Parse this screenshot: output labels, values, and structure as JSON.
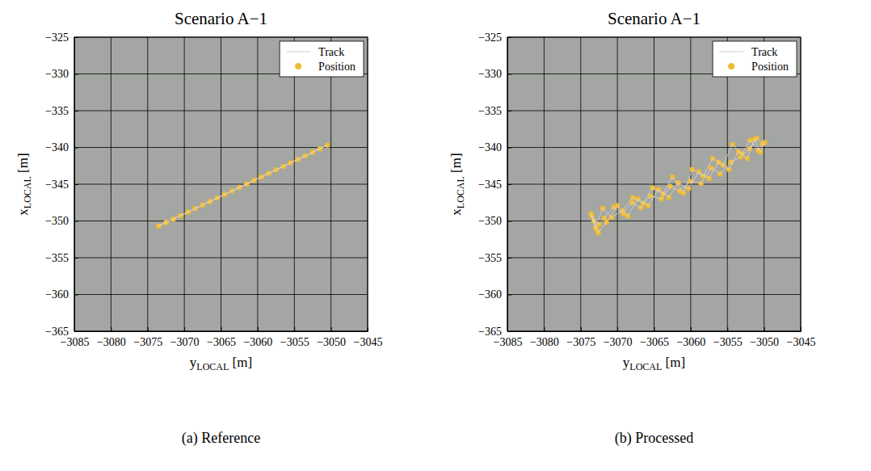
{
  "chart_data": [
    {
      "type": "scatter",
      "title": "Scenario A−1",
      "caption": "(a) Reference",
      "x_label": {
        "base": "y",
        "sub": "LOCAL",
        "unit": " [m]"
      },
      "y_label": {
        "base": "x",
        "sub": "LOCAL",
        "unit": " [m]"
      },
      "xlim": [
        -3085,
        -3045
      ],
      "ylim": [
        -365,
        -325
      ],
      "xticks": [
        {
          "value": -3085,
          "label": "−3085"
        },
        {
          "value": -3080,
          "label": "−3080"
        },
        {
          "value": -3075,
          "label": "−3075"
        },
        {
          "value": -3070,
          "label": "−3070"
        },
        {
          "value": -3065,
          "label": "−3065"
        },
        {
          "value": -3060,
          "label": "−3060"
        },
        {
          "value": -3055,
          "label": "−3055"
        },
        {
          "value": -3050,
          "label": "−3050"
        },
        {
          "value": -3045,
          "label": "−3045"
        }
      ],
      "yticks": [
        {
          "value": -365,
          "label": "−365"
        },
        {
          "value": -360,
          "label": "−360"
        },
        {
          "value": -355,
          "label": "−355"
        },
        {
          "value": -350,
          "label": "−350"
        },
        {
          "value": -345,
          "label": "−345"
        },
        {
          "value": -340,
          "label": "−340"
        },
        {
          "value": -335,
          "label": "−335"
        },
        {
          "value": -330,
          "label": "−330"
        },
        {
          "value": -325,
          "label": "−325"
        }
      ],
      "grid": true,
      "legend": "northeast",
      "series": [
        {
          "name": "Track",
          "type": "line",
          "color": "#d8d8d8",
          "line_style": "solid",
          "x": [
            -3073.5,
            -3072.5,
            -3071.5,
            -3070.5,
            -3069.5,
            -3068.5,
            -3067.5,
            -3066.5,
            -3065.5,
            -3064.5,
            -3063.5,
            -3062.5,
            -3061.5,
            -3060.5,
            -3059.5,
            -3058.5,
            -3057.5,
            -3056.5,
            -3055.5,
            -3054.5,
            -3053.5,
            -3052.5,
            -3051.5,
            -3050.5,
            -3051.5,
            -3052.5,
            -3053.5,
            -3054.5,
            -3055.5,
            -3056.5,
            -3057.5,
            -3058.5,
            -3059.5,
            -3060.5,
            -3061.5,
            -3062.5,
            -3063.5,
            -3064.5,
            -3065.5,
            -3066.5,
            -3067.5,
            -3068.5,
            -3069.5,
            -3070.5,
            -3071.5,
            -3072.5,
            -3073.5
          ],
          "values": [
            -350.7,
            -350.22,
            -349.74,
            -349.27,
            -348.79,
            -348.31,
            -347.83,
            -347.35,
            -346.88,
            -346.4,
            -345.92,
            -345.44,
            -344.96,
            -344.48,
            -344.01,
            -343.53,
            -343.05,
            -342.57,
            -342.09,
            -341.62,
            -341.14,
            -340.66,
            -340.18,
            -339.7,
            -340.18,
            -340.66,
            -341.14,
            -341.62,
            -342.09,
            -342.57,
            -343.05,
            -343.53,
            -344.01,
            -344.48,
            -344.96,
            -345.44,
            -345.92,
            -346.4,
            -346.88,
            -347.35,
            -347.83,
            -348.31,
            -348.79,
            -349.27,
            -349.74,
            -350.22,
            -350.7
          ]
        },
        {
          "name": "Position",
          "type": "scatter",
          "color": "#f2bb2e",
          "marker": "circle",
          "x": [
            -3073.5,
            -3072.5,
            -3071.5,
            -3070.5,
            -3069.5,
            -3068.5,
            -3067.5,
            -3066.5,
            -3065.5,
            -3064.5,
            -3063.5,
            -3062.5,
            -3061.5,
            -3060.5,
            -3059.5,
            -3058.5,
            -3057.5,
            -3056.5,
            -3055.5,
            -3054.5,
            -3053.5,
            -3052.5,
            -3051.5,
            -3050.5,
            -3051.5,
            -3052.5,
            -3053.5,
            -3054.5,
            -3055.5,
            -3056.5,
            -3057.5,
            -3058.5,
            -3059.5,
            -3060.5,
            -3061.5,
            -3062.5,
            -3063.5,
            -3064.5,
            -3065.5,
            -3066.5,
            -3067.5,
            -3068.5,
            -3069.5,
            -3070.5,
            -3071.5,
            -3072.5,
            -3073.5
          ],
          "values": [
            -350.7,
            -350.22,
            -349.74,
            -349.27,
            -348.79,
            -348.31,
            -347.83,
            -347.35,
            -346.88,
            -346.4,
            -345.92,
            -345.44,
            -344.96,
            -344.48,
            -344.01,
            -343.53,
            -343.05,
            -342.57,
            -342.09,
            -341.62,
            -341.14,
            -340.66,
            -340.18,
            -339.7,
            -340.18,
            -340.66,
            -341.14,
            -341.62,
            -342.09,
            -342.57,
            -343.05,
            -343.53,
            -344.01,
            -344.48,
            -344.96,
            -345.44,
            -345.92,
            -346.4,
            -346.88,
            -347.35,
            -347.83,
            -348.31,
            -348.79,
            -349.27,
            -349.74,
            -350.22,
            -350.7
          ]
        }
      ]
    },
    {
      "type": "scatter",
      "title": "Scenario A−1",
      "caption": "(b) Processed",
      "x_label": {
        "base": "y",
        "sub": "LOCAL",
        "unit": " [m]"
      },
      "y_label": {
        "base": "x",
        "sub": "LOCAL",
        "unit": " [m]"
      },
      "xlim": [
        -3085,
        -3045
      ],
      "ylim": [
        -365,
        -325
      ],
      "xticks": [
        {
          "value": -3085,
          "label": "−3085"
        },
        {
          "value": -3080,
          "label": "−3080"
        },
        {
          "value": -3075,
          "label": "−3075"
        },
        {
          "value": -3070,
          "label": "−3070"
        },
        {
          "value": -3065,
          "label": "−3065"
        },
        {
          "value": -3060,
          "label": "−3060"
        },
        {
          "value": -3055,
          "label": "−3055"
        },
        {
          "value": -3050,
          "label": "−3050"
        },
        {
          "value": -3045,
          "label": "−3045"
        }
      ],
      "yticks": [
        {
          "value": -365,
          "label": "−365"
        },
        {
          "value": -360,
          "label": "−360"
        },
        {
          "value": -355,
          "label": "−355"
        },
        {
          "value": -350,
          "label": "−350"
        },
        {
          "value": -345,
          "label": "−345"
        },
        {
          "value": -340,
          "label": "−340"
        },
        {
          "value": -335,
          "label": "−335"
        },
        {
          "value": -330,
          "label": "−330"
        },
        {
          "value": -325,
          "label": "−325"
        }
      ],
      "grid": true,
      "legend": "northeast",
      "series": [
        {
          "name": "Track",
          "type": "line",
          "color": "#d8d8d8",
          "line_style": "solid",
          "x": [
            -3073.2,
            -3072.8,
            -3073.5,
            -3072.5,
            -3071.8,
            -3070.5,
            -3069.2,
            -3068.0,
            -3066.8,
            -3065.5,
            -3064.0,
            -3062.8,
            -3061.5,
            -3060.0,
            -3058.6,
            -3057.2,
            -3056.0,
            -3054.5,
            -3053.2,
            -3052.0,
            -3051.0,
            -3050.2,
            -3050.8,
            -3051.9,
            -3053.0,
            -3054.3,
            -3055.6,
            -3057.0,
            -3058.3,
            -3059.8,
            -3061.0,
            -3062.5,
            -3063.8,
            -3065.2,
            -3066.5,
            -3067.9,
            -3069.3,
            -3070.8,
            -3072.0,
            -3073.0,
            -3073.6,
            -3072.6,
            -3071.5,
            -3070.0,
            -3068.6,
            -3067.2,
            -3065.8,
            -3064.4,
            -3063.0,
            -3061.7,
            -3060.3,
            -3058.9,
            -3057.5,
            -3056.2,
            -3054.8,
            -3053.5,
            -3052.3,
            -3051.3,
            -3050.5,
            -3049.9
          ],
          "values": [
            -350.0,
            -351.2,
            -349.3,
            -350.5,
            -349.6,
            -348.1,
            -349.0,
            -347.5,
            -348.2,
            -346.6,
            -347.0,
            -345.3,
            -345.9,
            -344.6,
            -344.9,
            -342.8,
            -343.6,
            -342.0,
            -341.3,
            -340.2,
            -338.7,
            -339.5,
            -340.4,
            -339.0,
            -340.9,
            -339.6,
            -342.4,
            -341.5,
            -343.9,
            -343.0,
            -346.2,
            -344.0,
            -346.3,
            -345.5,
            -347.6,
            -346.8,
            -348.6,
            -349.5,
            -348.3,
            -350.9,
            -349.0,
            -351.6,
            -350.2,
            -347.9,
            -349.3,
            -347.0,
            -347.9,
            -345.7,
            -346.8,
            -344.8,
            -345.6,
            -343.3,
            -344.2,
            -342.0,
            -343.0,
            -340.6,
            -341.5,
            -338.9,
            -340.6,
            -339.3
          ]
        },
        {
          "name": "Position",
          "type": "scatter",
          "color": "#f2bb2e",
          "marker": "circle",
          "x": [
            -3073.2,
            -3072.8,
            -3073.5,
            -3072.5,
            -3071.8,
            -3070.5,
            -3069.2,
            -3068.0,
            -3066.8,
            -3065.5,
            -3064.0,
            -3062.8,
            -3061.5,
            -3060.0,
            -3058.6,
            -3057.2,
            -3056.0,
            -3054.5,
            -3053.2,
            -3052.0,
            -3051.0,
            -3050.2,
            -3050.8,
            -3051.9,
            -3053.0,
            -3054.3,
            -3055.6,
            -3057.0,
            -3058.3,
            -3059.8,
            -3061.0,
            -3062.5,
            -3063.8,
            -3065.2,
            -3066.5,
            -3067.9,
            -3069.3,
            -3070.8,
            -3072.0,
            -3073.0,
            -3073.6,
            -3072.6,
            -3071.5,
            -3070.0,
            -3068.6,
            -3067.2,
            -3065.8,
            -3064.4,
            -3063.0,
            -3061.7,
            -3060.3,
            -3058.9,
            -3057.5,
            -3056.2,
            -3054.8,
            -3053.5,
            -3052.3,
            -3051.3,
            -3050.5,
            -3049.9
          ],
          "values": [
            -350.0,
            -351.2,
            -349.3,
            -350.5,
            -349.6,
            -348.1,
            -349.0,
            -347.5,
            -348.2,
            -346.6,
            -347.0,
            -345.3,
            -345.9,
            -344.6,
            -344.9,
            -342.8,
            -343.6,
            -342.0,
            -341.3,
            -340.2,
            -338.7,
            -339.5,
            -340.4,
            -339.0,
            -340.9,
            -339.6,
            -342.4,
            -341.5,
            -343.9,
            -343.0,
            -346.2,
            -344.0,
            -346.3,
            -345.5,
            -347.6,
            -346.8,
            -348.6,
            -349.5,
            -348.3,
            -350.9,
            -349.0,
            -351.6,
            -350.2,
            -347.9,
            -349.3,
            -347.0,
            -347.9,
            -345.7,
            -346.8,
            -344.8,
            -345.6,
            -343.3,
            -344.2,
            -342.0,
            -343.0,
            -340.6,
            -341.5,
            -338.9,
            -340.6,
            -339.3
          ]
        }
      ]
    }
  ]
}
